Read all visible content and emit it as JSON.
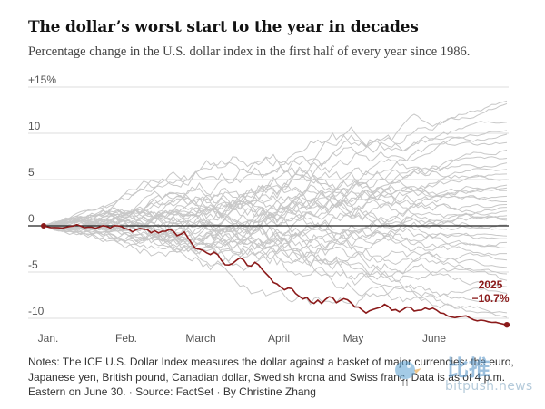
{
  "header": {
    "title": "The dollar’s worst start to the year in decades",
    "subtitle": "Percentage change in the U.S. dollar index in the first half of every year since 1986."
  },
  "footer": {
    "note": "Notes: The ICE U.S. Dollar Index measures the dollar against a basket of major currencies: the euro, Japanese yen, British pound, Canadian dollar, Swedish krona and Swiss franc. Data is as of 4 p.m. Eastern on June 30.",
    "source": "Source: FactSet",
    "byline": "By Christine Zhang"
  },
  "watermark": {
    "cjk": "比推",
    "latin": "bitpush.news"
  },
  "colors": {
    "highlight": "#8b1a1a",
    "others": "#c8c8c8",
    "zero_line": "#222222",
    "grid": "#dddddd",
    "tick_text": "#555555"
  },
  "chart_data": {
    "type": "line",
    "title": "The dollar’s worst start to the year in decades",
    "subtitle": "Percentage change in the U.S. dollar index in the first half of every year since 1986.",
    "xlabel": "",
    "ylabel": "",
    "x_tick_labels": [
      "Jan.",
      "Feb.",
      "March",
      "April",
      "May",
      "June"
    ],
    "y_ticks": [
      {
        "value": 15,
        "label": "+15%"
      },
      {
        "value": 10,
        "label": "10"
      },
      {
        "value": 5,
        "label": "5"
      },
      {
        "value": 0,
        "label": "0"
      },
      {
        "value": -5,
        "label": "-5"
      },
      {
        "value": -10,
        "label": "-10"
      }
    ],
    "ylim": [
      -11,
      15.5
    ],
    "grid": true,
    "highlight": {
      "name": "2025",
      "final_label": "−10.7%",
      "final_value": -10.7,
      "month_values": [
        0,
        -0.4,
        -2.5,
        -4.8,
        -7.8,
        -9.2,
        -10.7
      ]
    },
    "other_years_final_values": [
      13.5,
      13.2,
      11.2,
      10.3,
      9.9,
      9.0,
      8.2,
      7.3,
      6.1,
      5.6,
      5.0,
      4.4,
      3.8,
      3.2,
      2.6,
      2.0,
      1.6,
      1.1,
      0.6,
      0.1,
      -0.4,
      -1.1,
      -1.8,
      -2.4,
      -3.0,
      -3.7,
      -4.5,
      -5.2,
      -5.9,
      -6.6,
      -7.3,
      -8.2,
      -9.4,
      -9.9,
      6.8,
      4.1,
      2.3,
      -1.4,
      0.8
    ]
  }
}
